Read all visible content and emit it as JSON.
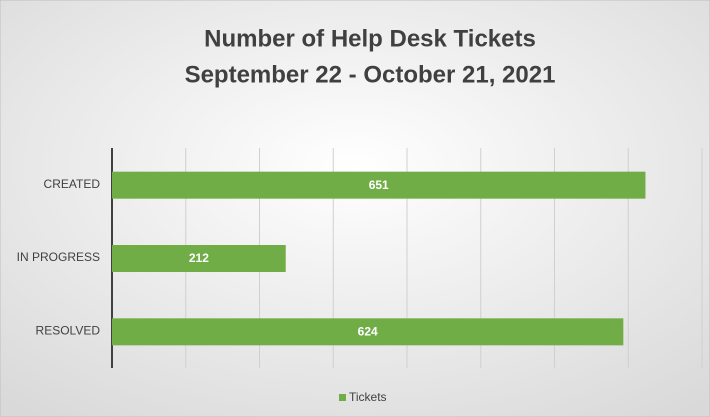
{
  "chart_data": {
    "type": "barh",
    "title": "Number of Help Desk Tickets",
    "subtitle": "September 22 - October 21, 2021",
    "categories": [
      "CREATED",
      "IN PROGRESS",
      "RESOLVED"
    ],
    "series": [
      {
        "name": "Tickets",
        "color": "#70ad47",
        "values": [
          651,
          212,
          624
        ]
      }
    ],
    "xlim": [
      0,
      720
    ],
    "xticks": [
      0,
      90,
      180,
      270,
      360,
      450,
      540,
      630,
      720
    ],
    "grid": true,
    "legend": "bottom"
  }
}
